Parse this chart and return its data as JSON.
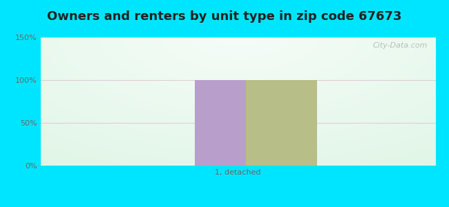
{
  "title": "Owners and renters by unit type in zip code 67673",
  "categories": [
    "1, detached"
  ],
  "owner_values": [
    100
  ],
  "renter_values": [
    100
  ],
  "owner_color": "#b89fcb",
  "renter_color": "#b8be88",
  "ylim": [
    0,
    150
  ],
  "yticks": [
    0,
    50,
    100,
    150
  ],
  "yticklabels": [
    "0%",
    "50%",
    "100%",
    "150%"
  ],
  "figure_bg": "#00e5ff",
  "bar_width": 0.18,
  "watermark": "City-Data.com",
  "title_fontsize": 13,
  "axis_label_fontsize": 9,
  "tick_fontsize": 8,
  "grid_color": "#cccccc",
  "tick_color": "#666666"
}
